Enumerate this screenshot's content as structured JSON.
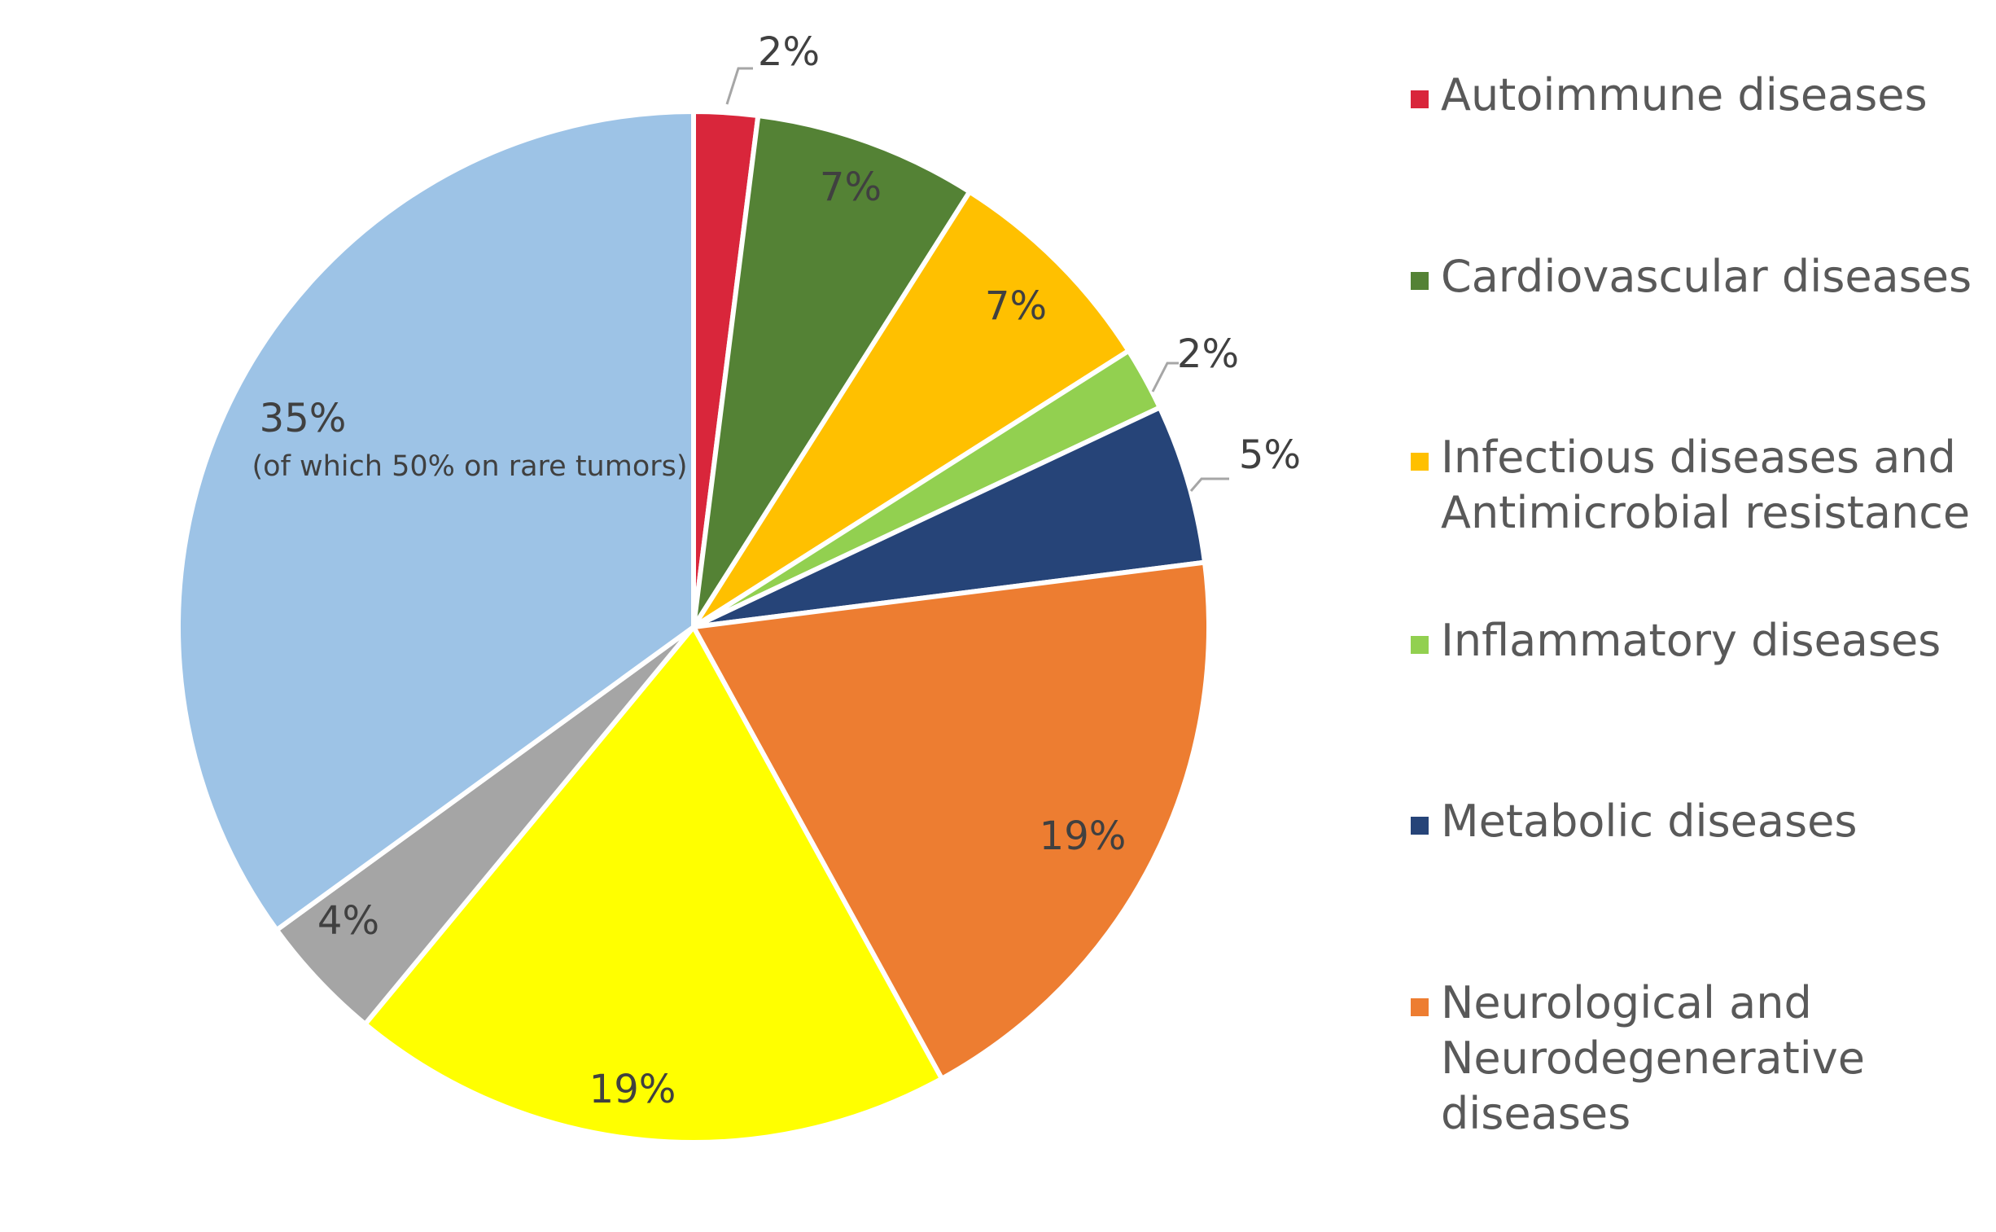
{
  "chart_data": {
    "type": "pie",
    "title": "",
    "slices": [
      {
        "label": "Autoimmune diseases",
        "value": 2,
        "value_label": "2%",
        "color": "#d9263b"
      },
      {
        "label": "Cardiovascular diseases",
        "value": 7,
        "value_label": "7%",
        "color": "#548235"
      },
      {
        "label": "Infectious diseases and Antimicrobial resistance",
        "value": 7,
        "value_label": "7%",
        "color": "#ffc000"
      },
      {
        "label": "Inflammatory diseases",
        "value": 2,
        "value_label": "2%",
        "color": "#92d050"
      },
      {
        "label": "Metabolic diseases",
        "value": 5,
        "value_label": "5%",
        "color": "#264478"
      },
      {
        "label": "Neurological and Neurodegenerative diseases",
        "value": 19,
        "value_label": "19%",
        "color": "#ed7d31"
      },
      {
        "label": "",
        "value": 19,
        "value_label": "19%",
        "color": "#ffff00"
      },
      {
        "label": "",
        "value": 4,
        "value_label": "4%",
        "color": "#a5a5a5"
      },
      {
        "label": "",
        "value": 35,
        "value_label": "35%",
        "note": "(of which 50% on rare tumors)",
        "color": "#9dc3e6"
      }
    ],
    "legend": {
      "placement": "right",
      "entries": [
        {
          "lines": [
            "Autoimmune diseases"
          ],
          "color": "#d9263b"
        },
        {
          "lines": [
            "Cardiovascular diseases"
          ],
          "color": "#548235"
        },
        {
          "lines": [
            "Infectious diseases and",
            "Antimicrobial resistance"
          ],
          "color": "#ffc000"
        },
        {
          "lines": [
            "Inflammatory diseases"
          ],
          "color": "#92d050"
        },
        {
          "lines": [
            "Metabolic diseases"
          ],
          "color": "#264478"
        },
        {
          "lines": [
            "Neurological and",
            "Neurodegenerative",
            "diseases"
          ],
          "color": "#ed7d31"
        }
      ]
    }
  }
}
